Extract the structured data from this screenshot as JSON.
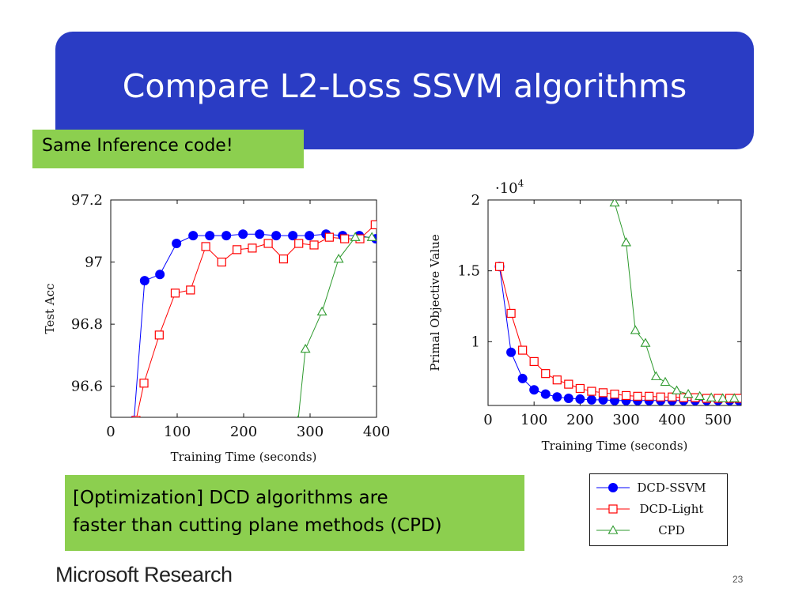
{
  "slide": {
    "title": "Compare L2-Loss SSVM algorithms",
    "callout_top": "Same Inference code!",
    "callout_bottom_lines": [
      "[Optimization] DCD algorithms are",
      "faster than cutting plane methods (CPD)"
    ],
    "brand": "Microsoft Research",
    "page_number": "23",
    "colors": {
      "title_bar": "#2a3cc4",
      "callout": "#8ccf4f",
      "dcd_ssvm": "#0000ff",
      "dcd_light": "#ff0000",
      "cpd": "#2e9a2e"
    }
  },
  "legend": {
    "entries": [
      {
        "label": "DCD-SSVM",
        "marker": "circle",
        "color": "#0000ff"
      },
      {
        "label": "DCD-Light",
        "marker": "square",
        "color": "#ff0000"
      },
      {
        "label": "CPD",
        "marker": "triangle",
        "color": "#2e9a2e"
      }
    ]
  },
  "chart_data": [
    {
      "type": "line",
      "xlabel": "Training Time (seconds)",
      "ylabel": "Test Acc",
      "xlim": [
        0,
        400
      ],
      "ylim": [
        96.5,
        97.2
      ],
      "x_ticks": [
        0,
        100,
        200,
        300,
        400
      ],
      "x_tick_labels": [
        "0",
        "100",
        "200",
        "300",
        "400"
      ],
      "y_ticks": [
        96.6,
        96.8,
        97,
        97.2
      ],
      "y_tick_labels": [
        "96.6",
        "96.8",
        "97",
        "97.2"
      ],
      "series": [
        {
          "name": "DCD-SSVM",
          "marker": "circle",
          "color": "#0000ff",
          "x": [
            35,
            51,
            74,
            99,
            124,
            149,
            174,
            199,
            224,
            249,
            274,
            299,
            324,
            349,
            374,
            399
          ],
          "y": [
            96.49,
            96.94,
            96.96,
            97.06,
            97.085,
            97.085,
            97.085,
            97.09,
            97.09,
            97.085,
            97.085,
            97.085,
            97.09,
            97.085,
            97.085,
            97.075
          ]
        },
        {
          "name": "DCD-Light",
          "marker": "square",
          "color": "#ff0000",
          "x": [
            38,
            50,
            73,
            97,
            120,
            143,
            167,
            190,
            213,
            237,
            260,
            283,
            306,
            329,
            352,
            375,
            398
          ],
          "y": [
            96.49,
            96.61,
            96.765,
            96.9,
            96.91,
            97.05,
            97.0,
            97.04,
            97.045,
            97.06,
            97.01,
            97.06,
            97.055,
            97.08,
            97.075,
            97.075,
            97.12
          ]
        },
        {
          "name": "CPD",
          "marker": "triangle",
          "color": "#2e9a2e",
          "x": [
            282,
            293,
            318,
            343,
            368,
            393
          ],
          "y": [
            96.49,
            96.72,
            96.84,
            97.01,
            97.08,
            97.08
          ]
        }
      ]
    },
    {
      "type": "line",
      "xlabel": "Training Time (seconds)",
      "ylabel": "Primal Objective Value",
      "axis_multiplier": "·10^4",
      "xlim": [
        0,
        550
      ],
      "ylim": [
        0.55,
        2.0
      ],
      "x_ticks": [
        0,
        100,
        200,
        300,
        400,
        500
      ],
      "x_tick_labels": [
        "0",
        "100",
        "200",
        "300",
        "400",
        "500"
      ],
      "y_ticks": [
        1,
        1.5,
        2
      ],
      "y_tick_labels": [
        "1",
        "1.5",
        "2"
      ],
      "series": [
        {
          "name": "DCD-SSVM",
          "marker": "circle",
          "color": "#0000ff",
          "x": [
            25,
            50,
            75,
            100,
            125,
            150,
            175,
            200,
            225,
            250,
            275,
            300,
            325,
            350,
            375,
            400,
            425,
            450,
            475,
            500,
            525,
            545
          ],
          "y": [
            1.53,
            0.925,
            0.74,
            0.66,
            0.63,
            0.61,
            0.6,
            0.595,
            0.59,
            0.59,
            0.585,
            0.585,
            0.585,
            0.585,
            0.585,
            0.585,
            0.585,
            0.585,
            0.585,
            0.585,
            0.585,
            0.585
          ]
        },
        {
          "name": "DCD-Light",
          "marker": "square",
          "color": "#ff0000",
          "x": [
            25,
            50,
            75,
            100,
            125,
            150,
            175,
            200,
            225,
            250,
            275,
            300,
            325,
            350,
            375,
            400,
            425,
            450,
            475,
            500,
            525,
            545
          ],
          "y": [
            1.53,
            1.2,
            0.94,
            0.86,
            0.775,
            0.73,
            0.7,
            0.67,
            0.65,
            0.64,
            0.63,
            0.62,
            0.615,
            0.615,
            0.61,
            0.61,
            0.605,
            0.605,
            0.6,
            0.6,
            0.6,
            0.6
          ]
        },
        {
          "name": "CPD",
          "marker": "triangle",
          "color": "#2e9a2e",
          "x": [
            275,
            300,
            320,
            342,
            365,
            385,
            410,
            435,
            460,
            485,
            510,
            535
          ],
          "y": [
            1.98,
            1.7,
            1.08,
            0.99,
            0.755,
            0.715,
            0.655,
            0.63,
            0.615,
            0.605,
            0.6,
            0.6
          ]
        }
      ]
    }
  ]
}
